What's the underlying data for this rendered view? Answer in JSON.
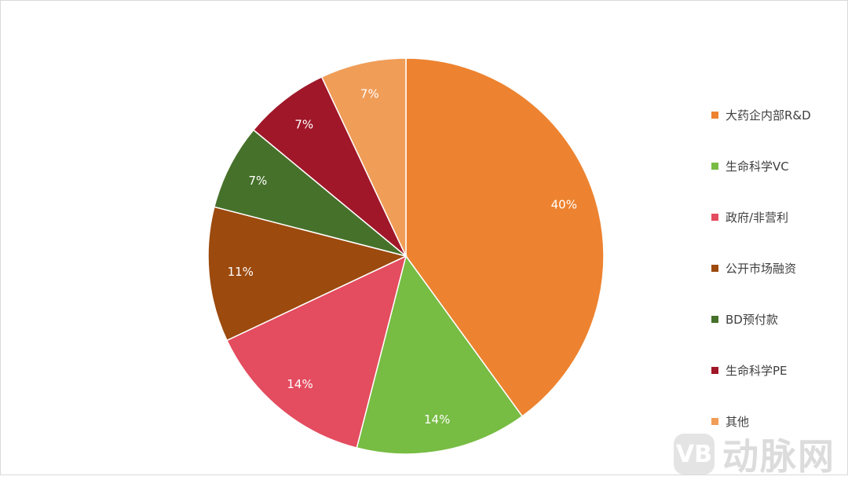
{
  "chart_data": {
    "type": "pie",
    "start_angle": "12 o'clock",
    "direction": "clockwise",
    "slices": [
      {
        "label": "大药企内部R&D",
        "value": 40,
        "data_label": "40%",
        "color": "#ED8330"
      },
      {
        "label": "生命科学VC",
        "value": 14,
        "data_label": "14%",
        "color": "#77BC43"
      },
      {
        "label": "政府/非营利",
        "value": 14,
        "data_label": "14%",
        "color": "#E44C5F"
      },
      {
        "label": "公开市场融资",
        "value": 11,
        "data_label": "11%",
        "color": "#9C4A0E"
      },
      {
        "label": "BD预付款",
        "value": 7,
        "data_label": "7%",
        "color": "#46712A"
      },
      {
        "label": "生命科学PE",
        "value": 7,
        "data_label": "7%",
        "color": "#A01729"
      },
      {
        "label": "其他",
        "value": 7,
        "data_label": "7%",
        "color": "#F09D58"
      }
    ],
    "legend_position": "right"
  },
  "watermark": {
    "logo": "VB",
    "text": "动脉网"
  }
}
